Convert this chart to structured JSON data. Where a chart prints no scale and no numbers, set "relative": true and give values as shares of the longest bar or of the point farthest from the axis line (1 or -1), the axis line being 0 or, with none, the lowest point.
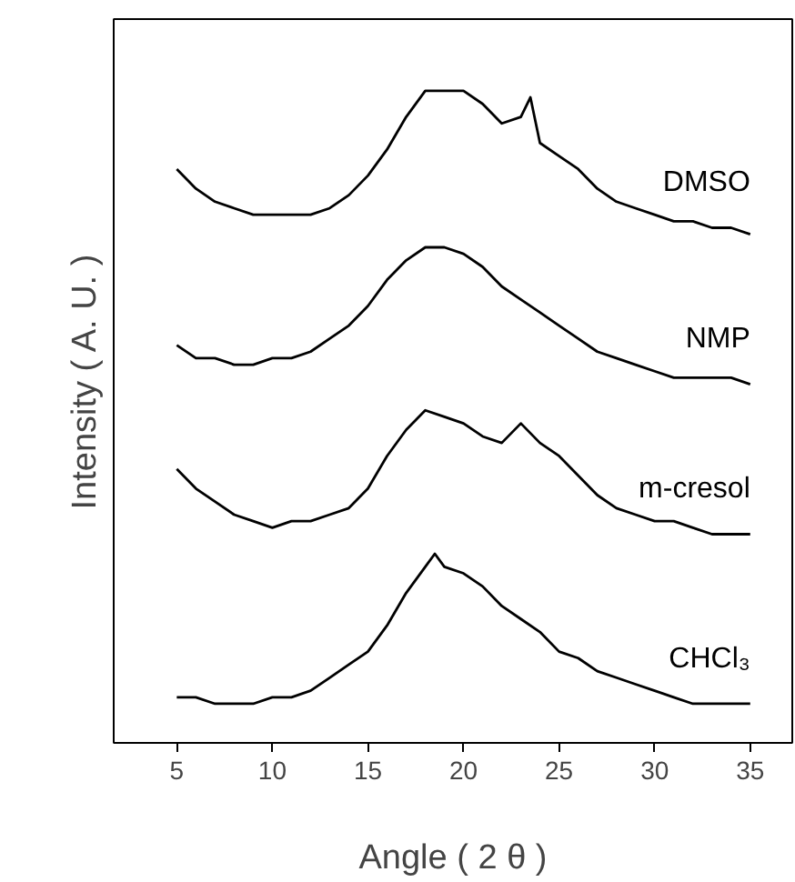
{
  "chart_data": {
    "type": "line",
    "xlabel": "Angle ( 2 θ )",
    "ylabel": "Intensity ( A. U. )",
    "relative": true,
    "xlim": [
      1.7,
      37.2
    ],
    "xticks": [
      5,
      10,
      15,
      20,
      25,
      30,
      35
    ],
    "grid": false,
    "legend": false,
    "marker": "none",
    "line_style": "solid",
    "series": [
      {
        "name": "DMSO",
        "color": "#000000",
        "x": [
          5,
          6,
          7,
          8,
          9,
          10,
          11,
          12,
          13,
          14,
          15,
          16,
          17,
          18,
          19,
          20,
          21,
          22,
          23,
          23.5,
          24,
          25,
          26,
          27,
          28,
          29,
          30,
          31,
          32,
          33,
          34,
          35
        ],
        "values": [
          0.88,
          0.85,
          0.83,
          0.82,
          0.81,
          0.81,
          0.81,
          0.81,
          0.82,
          0.84,
          0.87,
          0.91,
          0.96,
          1.0,
          1.0,
          1.0,
          0.98,
          0.95,
          0.96,
          0.99,
          0.92,
          0.9,
          0.88,
          0.85,
          0.83,
          0.82,
          0.81,
          0.8,
          0.8,
          0.79,
          0.79,
          0.78
        ]
      },
      {
        "name": "NMP",
        "color": "#000000",
        "x": [
          5,
          6,
          7,
          8,
          9,
          10,
          11,
          12,
          13,
          14,
          15,
          16,
          17,
          18,
          19,
          20,
          21,
          22,
          23,
          24,
          25,
          26,
          27,
          28,
          29,
          30,
          31,
          32,
          33,
          34,
          35
        ],
        "values": [
          0.61,
          0.59,
          0.59,
          0.58,
          0.58,
          0.59,
          0.59,
          0.6,
          0.62,
          0.64,
          0.67,
          0.71,
          0.74,
          0.76,
          0.76,
          0.75,
          0.73,
          0.7,
          0.68,
          0.66,
          0.64,
          0.62,
          0.6,
          0.59,
          0.58,
          0.57,
          0.56,
          0.56,
          0.56,
          0.56,
          0.55
        ]
      },
      {
        "name": "m-cresol",
        "color": "#000000",
        "x": [
          5,
          6,
          7,
          8,
          9,
          10,
          11,
          12,
          13,
          14,
          15,
          16,
          17,
          18,
          19,
          20,
          21,
          22,
          23,
          24,
          25,
          26,
          27,
          28,
          29,
          30,
          31,
          32,
          33,
          34,
          35
        ],
        "values": [
          0.42,
          0.39,
          0.37,
          0.35,
          0.34,
          0.33,
          0.34,
          0.34,
          0.35,
          0.36,
          0.39,
          0.44,
          0.48,
          0.51,
          0.5,
          0.49,
          0.47,
          0.46,
          0.49,
          0.46,
          0.44,
          0.41,
          0.38,
          0.36,
          0.35,
          0.34,
          0.34,
          0.33,
          0.32,
          0.32,
          0.32
        ]
      },
      {
        "name": "CHCl₃",
        "color": "#000000",
        "x": [
          5,
          6,
          7,
          8,
          9,
          10,
          11,
          12,
          13,
          14,
          15,
          16,
          17,
          18,
          18.5,
          19,
          20,
          21,
          22,
          23,
          24,
          25,
          26,
          27,
          28,
          29,
          30,
          31,
          32,
          33,
          34,
          35
        ],
        "values": [
          0.07,
          0.07,
          0.06,
          0.06,
          0.06,
          0.07,
          0.07,
          0.08,
          0.1,
          0.12,
          0.14,
          0.18,
          0.23,
          0.27,
          0.29,
          0.27,
          0.26,
          0.24,
          0.21,
          0.19,
          0.17,
          0.14,
          0.13,
          0.11,
          0.1,
          0.09,
          0.08,
          0.07,
          0.06,
          0.06,
          0.06,
          0.06
        ]
      }
    ]
  }
}
